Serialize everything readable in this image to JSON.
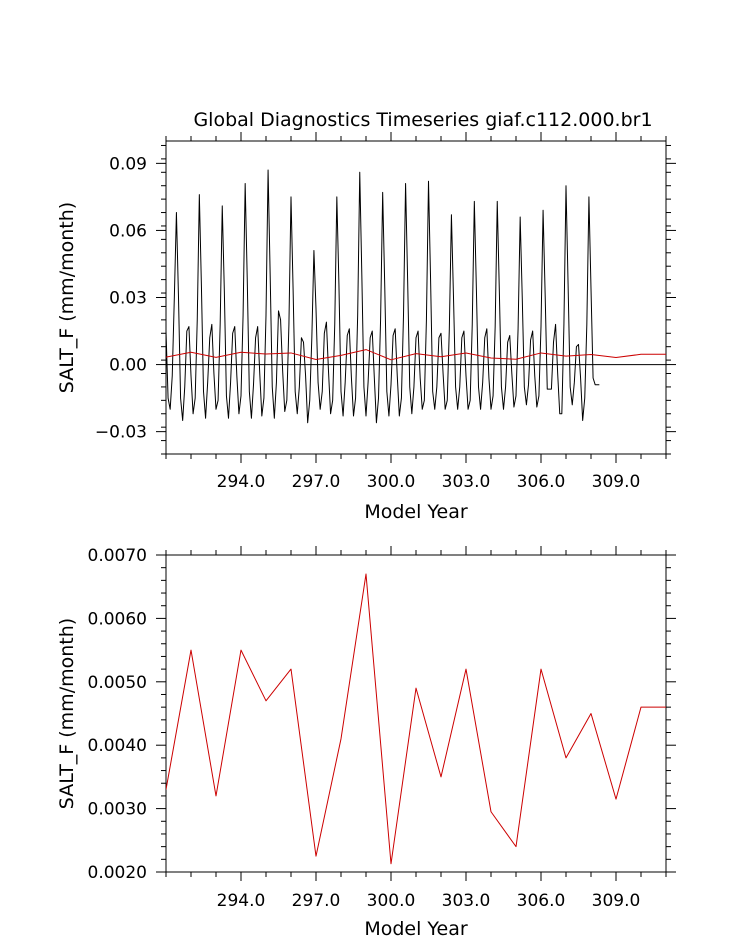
{
  "chart_data": [
    {
      "type": "line",
      "title": "Global Diagnostics Timeseries giaf.c112.000.br1",
      "xlabel": "Model Year",
      "ylabel": "SALT_F (mm/month)",
      "xlim": [
        291.0,
        311.0
      ],
      "ylim": [
        -0.04,
        0.1
      ],
      "x_ticks": [
        294.0,
        297.0,
        300.0,
        303.0,
        306.0,
        309.0
      ],
      "x_tick_labels": [
        "294.0",
        "297.0",
        "300.0",
        "303.0",
        "306.0",
        "309.0"
      ],
      "y_ticks": [
        -0.03,
        0.0,
        0.03,
        0.06,
        0.09
      ],
      "y_tick_labels": [
        "−0.03",
        "0.00",
        "0.03",
        "0.06",
        "0.09"
      ],
      "grid": false,
      "zero_line": true,
      "series": [
        {
          "color": "#000000",
          "kind": "monthly",
          "start_year": 291.0,
          "peaks": [
            0.068,
            0.076,
            0.071,
            0.081,
            0.087,
            0.075,
            0.051,
            0.075,
            0.086,
            0.077,
            0.081,
            0.082,
            0.067,
            0.073,
            0.073,
            0.066,
            0.069,
            0.08,
            0.075
          ],
          "y": [
            0.015,
            -0.015,
            -0.02,
            -0.005,
            0.03,
            0.068,
            0.03,
            -0.015,
            -0.025,
            -0.01,
            0.015,
            0.017,
            -0.005,
            -0.022,
            -0.015,
            0.02,
            0.076,
            0.035,
            -0.012,
            -0.024,
            -0.008,
            0.012,
            0.018,
            -0.004,
            -0.02,
            -0.016,
            0.018,
            0.071,
            0.033,
            -0.014,
            -0.024,
            -0.008,
            0.014,
            0.017,
            -0.005,
            -0.022,
            -0.014,
            0.022,
            0.081,
            0.038,
            -0.012,
            -0.024,
            -0.009,
            0.012,
            0.017,
            -0.004,
            -0.023,
            -0.015,
            0.022,
            0.087,
            0.04,
            -0.01,
            -0.024,
            -0.008,
            0.024,
            0.02,
            -0.003,
            -0.021,
            -0.016,
            0.018,
            0.075,
            0.034,
            -0.012,
            -0.022,
            -0.01,
            0.012,
            0.01,
            -0.005,
            -0.026,
            -0.016,
            0.012,
            0.051,
            0.025,
            -0.008,
            -0.02,
            -0.012,
            0.014,
            0.019,
            -0.003,
            -0.022,
            -0.016,
            0.018,
            0.075,
            0.036,
            -0.012,
            -0.023,
            -0.008,
            0.013,
            0.016,
            -0.006,
            -0.023,
            -0.015,
            0.022,
            0.086,
            0.04,
            -0.01,
            -0.023,
            -0.008,
            0.012,
            0.015,
            -0.006,
            -0.026,
            -0.015,
            0.02,
            0.077,
            0.035,
            -0.012,
            -0.023,
            -0.009,
            0.013,
            0.016,
            -0.005,
            -0.023,
            -0.015,
            0.022,
            0.081,
            0.037,
            -0.01,
            -0.022,
            -0.01,
            0.012,
            0.015,
            -0.006,
            -0.02,
            -0.016,
            0.02,
            0.082,
            0.038,
            -0.012,
            -0.02,
            -0.01,
            0.012,
            0.014,
            -0.004,
            -0.02,
            -0.016,
            0.016,
            0.067,
            0.03,
            -0.01,
            -0.02,
            -0.01,
            0.012,
            0.015,
            -0.005,
            -0.02,
            -0.016,
            0.018,
            0.073,
            0.033,
            -0.01,
            -0.02,
            -0.008,
            0.012,
            0.016,
            -0.006,
            -0.02,
            -0.014,
            0.017,
            0.073,
            0.033,
            -0.01,
            -0.02,
            -0.01,
            0.01,
            0.013,
            -0.004,
            -0.019,
            -0.014,
            0.016,
            0.066,
            0.03,
            -0.01,
            -0.018,
            -0.009,
            0.011,
            0.015,
            -0.005,
            -0.019,
            -0.014,
            0.017,
            0.069,
            0.031,
            -0.011,
            -0.011,
            -0.011,
            0.01,
            0.018,
            -0.004,
            -0.022,
            -0.022,
            0.018,
            0.08,
            0.036,
            -0.01,
            -0.018,
            -0.008,
            0.008,
            0.009,
            -0.006,
            -0.025,
            -0.015,
            0.018,
            0.075,
            0.034,
            -0.006,
            -0.009,
            -0.009,
            -0.009
          ]
        },
        {
          "color": "#cc0000",
          "kind": "annual",
          "x": [
            291.0,
            292.0,
            293.0,
            294.0,
            295.0,
            296.0,
            297.0,
            298.0,
            299.0,
            300.0,
            301.0,
            302.0,
            303.0,
            304.0,
            305.0,
            306.0,
            307.0,
            308.0,
            309.0,
            310.0,
            311.0
          ],
          "y": [
            0.0033,
            0.0055,
            0.0032,
            0.0055,
            0.0047,
            0.0052,
            0.00225,
            0.0041,
            0.0067,
            0.00213,
            0.0049,
            0.0035,
            0.0052,
            0.00295,
            0.0024,
            0.0052,
            0.0038,
            0.0045,
            0.00315,
            0.0046,
            0.0046
          ]
        }
      ]
    },
    {
      "type": "line",
      "title": "",
      "xlabel": "Model Year",
      "ylabel": "SALT_F (mm/month)",
      "xlim": [
        291.0,
        311.0
      ],
      "ylim": [
        0.002,
        0.007
      ],
      "x_ticks": [
        294.0,
        297.0,
        300.0,
        303.0,
        306.0,
        309.0
      ],
      "x_tick_labels": [
        "294.0",
        "297.0",
        "300.0",
        "303.0",
        "306.0",
        "309.0"
      ],
      "y_ticks": [
        0.002,
        0.003,
        0.004,
        0.005,
        0.006,
        0.007
      ],
      "y_tick_labels": [
        "0.0020",
        "0.0030",
        "0.0040",
        "0.0050",
        "0.0060",
        "0.0070"
      ],
      "grid": false,
      "series": [
        {
          "color": "#cc0000",
          "x": [
            291.0,
            292.0,
            293.0,
            294.0,
            295.0,
            296.0,
            297.0,
            298.0,
            299.0,
            300.0,
            301.0,
            302.0,
            303.0,
            304.0,
            305.0,
            306.0,
            307.0,
            308.0,
            309.0,
            310.0,
            311.0
          ],
          "y": [
            0.0033,
            0.0055,
            0.0032,
            0.0055,
            0.0047,
            0.0052,
            0.00225,
            0.0041,
            0.0067,
            0.00213,
            0.0049,
            0.0035,
            0.0052,
            0.00295,
            0.0024,
            0.0052,
            0.0038,
            0.0045,
            0.00315,
            0.0046,
            0.0046
          ]
        }
      ]
    }
  ]
}
